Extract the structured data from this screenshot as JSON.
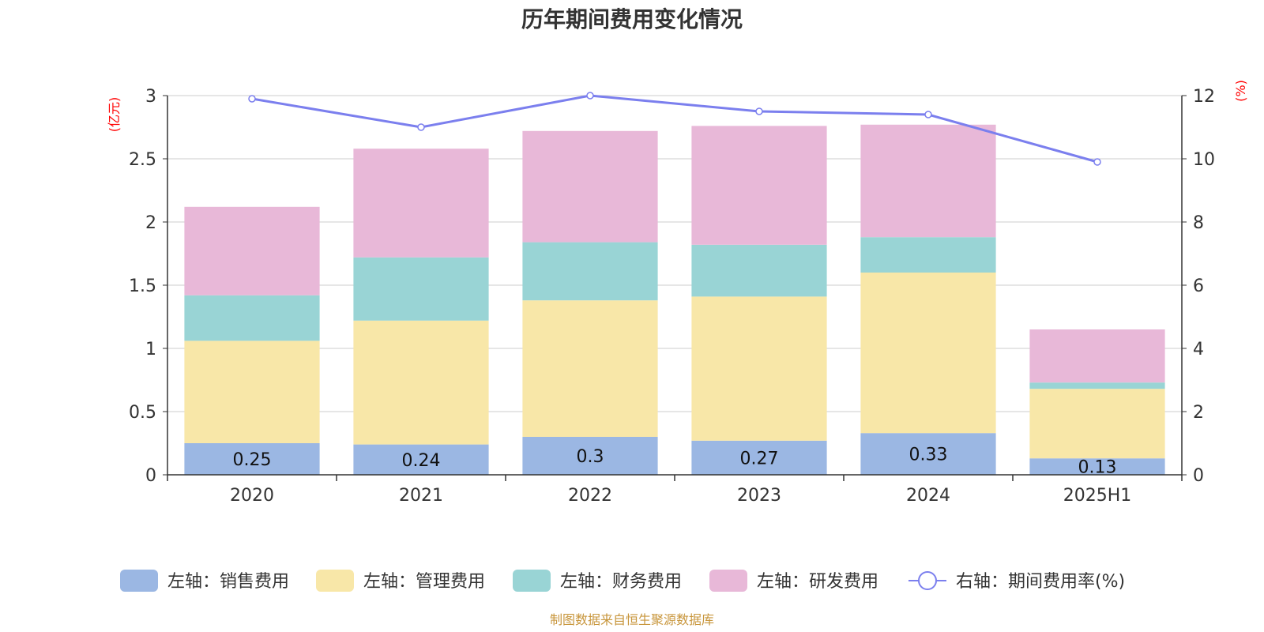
{
  "chart_data": {
    "type": "bar",
    "title": "历年期间费用变化情况",
    "categories": [
      "2020",
      "2021",
      "2022",
      "2023",
      "2024",
      "2025H1"
    ],
    "left_axis": {
      "unit": "(亿元)",
      "ylim": [
        0,
        3
      ],
      "ticks": [
        "0",
        "0.5",
        "1",
        "1.5",
        "2",
        "2.5",
        "3"
      ]
    },
    "right_axis": {
      "unit": "(%)",
      "ylim": [
        0,
        12
      ],
      "ticks": [
        "0",
        "2",
        "4",
        "6",
        "8",
        "10",
        "12"
      ]
    },
    "grid": true,
    "stacked": true,
    "series": [
      {
        "name": "左轴：销售费用",
        "color": "#9bb7e3",
        "values": [
          0.25,
          0.24,
          0.3,
          0.27,
          0.33,
          0.13
        ],
        "labels": [
          "0.25",
          "0.24",
          "0.3",
          "0.27",
          "0.33",
          "0.13"
        ]
      },
      {
        "name": "左轴：管理费用",
        "color": "#f8e7a8",
        "values": [
          0.81,
          0.98,
          1.08,
          1.14,
          1.27,
          0.55
        ]
      },
      {
        "name": "左轴：财务费用",
        "color": "#99d4d5",
        "values": [
          0.36,
          0.5,
          0.46,
          0.41,
          0.28,
          0.05
        ]
      },
      {
        "name": "左轴：研发费用",
        "color": "#e8b8d8",
        "values": [
          0.7,
          0.86,
          0.88,
          0.94,
          0.89,
          0.42
        ]
      }
    ],
    "line": {
      "name": "右轴：期间费用率(%)",
      "color": "#7b7fee",
      "values": [
        11.9,
        11.0,
        12.0,
        11.5,
        11.4,
        9.9
      ]
    },
    "legend_position": "bottom"
  },
  "source_note": "制图数据来自恒生聚源数据库"
}
